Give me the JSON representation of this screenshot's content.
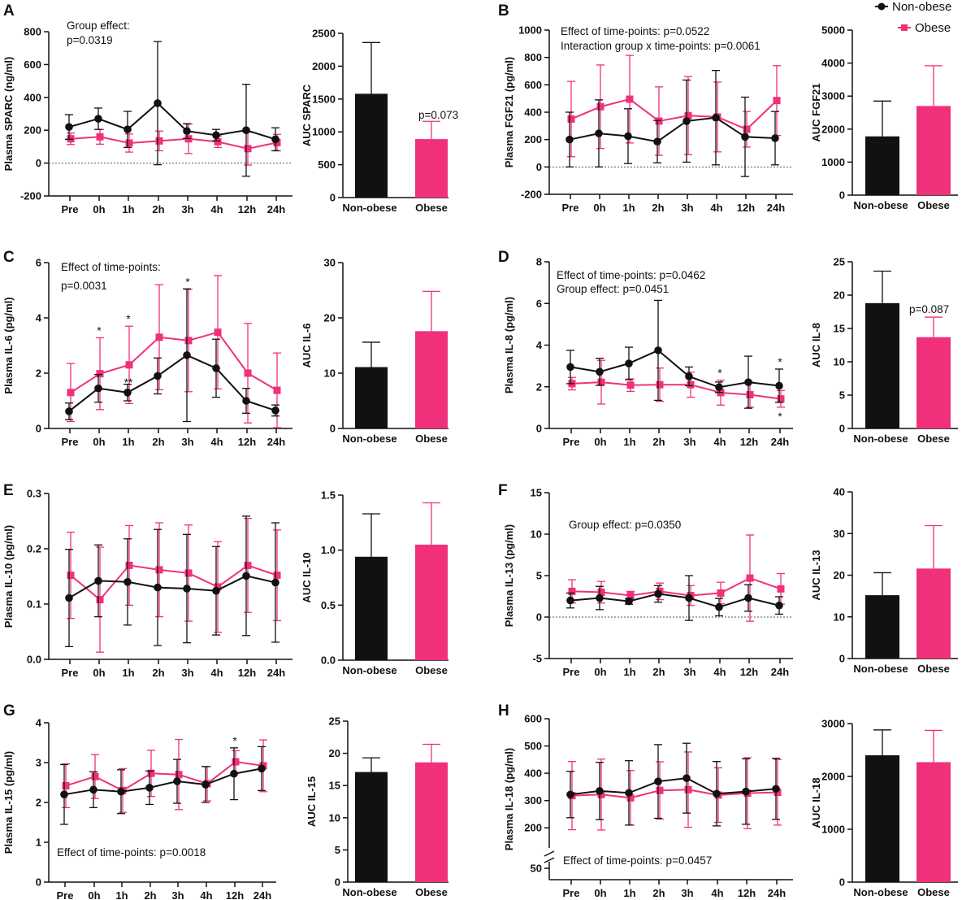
{
  "colors": {
    "non_obese": "#111111",
    "obese": "#f0307a"
  },
  "legend": {
    "non_obese": "Non-obese",
    "obese": "Obese"
  },
  "timepoints": [
    "Pre",
    "0h",
    "1h",
    "2h",
    "3h",
    "4h",
    "12h",
    "24h"
  ],
  "chart_data": [
    {
      "panel": "A",
      "type": "line",
      "title": "",
      "ylabel": "Plasma SPARC (ng/ml)",
      "ylim": [
        -200,
        800
      ],
      "yticks": [
        -200,
        0,
        200,
        400,
        600,
        800
      ],
      "zero_line": true,
      "annotations": [
        "Group effect:",
        "p=0.0319"
      ],
      "series": [
        {
          "name": "Non-obese",
          "values": [
            220,
            270,
            205,
            365,
            195,
            170,
            200,
            145
          ],
          "errors": [
            75,
            65,
            110,
            375,
            45,
            35,
            280,
            70
          ]
        },
        {
          "name": "Obese",
          "values": [
            148,
            160,
            122,
            135,
            148,
            130,
            88,
            125
          ],
          "errors": [
            35,
            45,
            55,
            60,
            90,
            35,
            100,
            50
          ]
        }
      ],
      "bar": {
        "type": "bar",
        "ylabel": "AUC SPARC",
        "ylim": [
          0,
          2500
        ],
        "yticks": [
          0,
          500,
          1000,
          1500,
          2000,
          2500
        ],
        "categories": [
          "Non-obese",
          "Obese"
        ],
        "values": [
          1580,
          890
        ],
        "errors": [
          780,
          270
        ],
        "annotation": "p=0.073"
      }
    },
    {
      "panel": "B",
      "type": "line",
      "ylabel": "Plasma FGF21 (pg/ml)",
      "ylim": [
        -200,
        1000
      ],
      "yticks": [
        -200,
        0,
        200,
        400,
        600,
        800,
        1000
      ],
      "zero_line": true,
      "annotations": [
        "Effect of time-points: p=0.0522",
        "Interaction group x time-points: p=0.0061"
      ],
      "series": [
        {
          "name": "Non-obese",
          "values": [
            200,
            245,
            225,
            185,
            335,
            360,
            220,
            210
          ],
          "errors": [
            200,
            245,
            200,
            155,
            300,
            345,
            290,
            195
          ]
        },
        {
          "name": "Obese",
          "values": [
            350,
            440,
            495,
            335,
            375,
            365,
            275,
            485
          ],
          "errors": [
            275,
            305,
            320,
            250,
            285,
            255,
            130,
            255
          ]
        }
      ],
      "bar": {
        "type": "bar",
        "ylabel": "AUC FGF21",
        "ylim": [
          0,
          5000
        ],
        "yticks": [
          0,
          1000,
          2000,
          3000,
          4000,
          5000
        ],
        "categories": [
          "Non-obese",
          "Obese"
        ],
        "values": [
          1780,
          2700
        ],
        "errors": [
          1070,
          1220
        ],
        "annotation": ""
      }
    },
    {
      "panel": "C",
      "type": "line",
      "ylabel": "Plasma IL-6 (pg/ml)",
      "ylim": [
        0,
        6
      ],
      "yticks": [
        0,
        2,
        4,
        6
      ],
      "zero_line": false,
      "annotations": [
        "Effect of time-points:",
        "p=0.0031"
      ],
      "markers": [
        {
          "index": 1,
          "text": "*"
        },
        {
          "index": 2,
          "text": "*"
        },
        {
          "index": 2,
          "text": "**"
        },
        {
          "index": 4,
          "text": "*"
        }
      ],
      "series": [
        {
          "name": "Non-obese",
          "values": [
            0.62,
            1.45,
            1.3,
            1.9,
            2.65,
            2.18,
            1.0,
            0.65
          ],
          "errors": [
            0.3,
            0.5,
            0.3,
            0.65,
            2.4,
            1.05,
            0.45,
            0.2
          ]
        },
        {
          "name": "Obese",
          "values": [
            1.3,
            1.98,
            2.3,
            3.3,
            3.18,
            3.48,
            2.0,
            1.38
          ],
          "errors": [
            1.05,
            1.3,
            1.4,
            1.9,
            1.85,
            2.05,
            1.8,
            1.35
          ]
        }
      ],
      "bar": {
        "type": "bar",
        "ylabel": "AUC IL-6",
        "ylim": [
          0,
          30
        ],
        "yticks": [
          0,
          10,
          20,
          30
        ],
        "categories": [
          "Non-obese",
          "Obese"
        ],
        "values": [
          11.1,
          17.6
        ],
        "errors": [
          4.5,
          7.2
        ],
        "annotation": ""
      }
    },
    {
      "panel": "D",
      "type": "line",
      "ylabel": "Plasma IL-8 (pg/ml)",
      "ylim": [
        0,
        8
      ],
      "yticks": [
        0,
        2,
        4,
        6,
        8
      ],
      "zero_line": false,
      "annotations": [
        "Effect of time-points: p=0.0462",
        "Group effect: p=0.0451"
      ],
      "markers": [
        {
          "index": 5,
          "text": "*"
        },
        {
          "index": 7,
          "text": "*"
        },
        {
          "index": 7,
          "text": "*",
          "below": true
        }
      ],
      "series": [
        {
          "name": "Non-obese",
          "values": [
            2.95,
            2.72,
            3.12,
            3.75,
            2.5,
            1.98,
            2.22,
            2.05
          ],
          "errors": [
            0.8,
            0.65,
            0.78,
            2.4,
            0.45,
            0.25,
            1.25,
            0.8
          ]
        },
        {
          "name": "Obese",
          "values": [
            2.15,
            2.22,
            2.08,
            2.1,
            2.1,
            1.72,
            1.62,
            1.42
          ],
          "errors": [
            0.3,
            1.05,
            0.3,
            0.8,
            0.6,
            0.6,
            0.6,
            0.4
          ]
        }
      ],
      "bar": {
        "type": "bar",
        "ylabel": "AUC IL-8",
        "ylim": [
          0,
          25
        ],
        "yticks": [
          0,
          5,
          10,
          15,
          20,
          25
        ],
        "categories": [
          "Non-obese",
          "Obese"
        ],
        "values": [
          18.8,
          13.7
        ],
        "errors": [
          4.8,
          3.0
        ],
        "annotation": "p=0.087"
      }
    },
    {
      "panel": "E",
      "type": "line",
      "ylabel": "Plasma IL-10 (pg/ml)",
      "ylim": [
        0,
        0.3
      ],
      "yticks": [
        0.0,
        0.1,
        0.2,
        0.3
      ],
      "ytick_labels": [
        "0.0",
        "0.1",
        "0.2",
        "0.3"
      ],
      "zero_line": false,
      "annotations": [],
      "series": [
        {
          "name": "Non-obese",
          "values": [
            0.111,
            0.142,
            0.14,
            0.13,
            0.128,
            0.124,
            0.151,
            0.139
          ],
          "errors": [
            0.088,
            0.065,
            0.078,
            0.105,
            0.098,
            0.08,
            0.108,
            0.108
          ]
        },
        {
          "name": "Obese",
          "values": [
            0.152,
            0.108,
            0.17,
            0.162,
            0.156,
            0.131,
            0.17,
            0.152
          ],
          "errors": [
            0.078,
            0.095,
            0.072,
            0.085,
            0.087,
            0.082,
            0.085,
            0.082
          ]
        }
      ],
      "bar": {
        "type": "bar",
        "ylabel": "AUC IL-10",
        "ylim": [
          0,
          1.5
        ],
        "yticks": [
          0.0,
          0.5,
          1.0,
          1.5
        ],
        "ytick_labels": [
          "0.0",
          "0.5",
          "1.0",
          "1.5"
        ],
        "categories": [
          "Non-obese",
          "Obese"
        ],
        "values": [
          0.94,
          1.05
        ],
        "errors": [
          0.39,
          0.38
        ],
        "annotation": ""
      }
    },
    {
      "panel": "F",
      "type": "line",
      "ylabel": "Plasma IL-13 (pg/ml)",
      "ylim": [
        -5,
        15
      ],
      "yticks": [
        -5,
        0,
        5,
        10,
        15
      ],
      "zero_line": true,
      "annotations": [
        "Group effect: p=0.0350"
      ],
      "series": [
        {
          "name": "Non-obese",
          "values": [
            2.0,
            2.3,
            1.9,
            2.8,
            2.3,
            1.2,
            2.3,
            1.4
          ],
          "errors": [
            0.9,
            1.4,
            0.35,
            1.0,
            2.7,
            1.05,
            1.6,
            1.05
          ]
        },
        {
          "name": "Obese",
          "values": [
            3.1,
            3.0,
            2.6,
            3.1,
            2.6,
            2.9,
            4.7,
            3.4
          ],
          "errors": [
            1.4,
            1.3,
            0.5,
            1.0,
            1.2,
            1.3,
            5.2,
            1.85
          ]
        }
      ],
      "bar": {
        "type": "bar",
        "ylabel": "AUC IL-13",
        "ylim": [
          0,
          40
        ],
        "yticks": [
          0,
          10,
          20,
          30,
          40
        ],
        "categories": [
          "Non-obese",
          "Obese"
        ],
        "values": [
          15.2,
          21.6
        ],
        "errors": [
          5.4,
          10.3
        ],
        "annotation": ""
      }
    },
    {
      "panel": "G",
      "type": "line",
      "ylabel": "Plasma IL-15 (pg/ml)",
      "ylim": [
        0,
        4
      ],
      "yticks": [
        0,
        1,
        2,
        3,
        4
      ],
      "zero_line": false,
      "annotations": [
        "Effect of time-points: p=0.0018"
      ],
      "markers": [
        {
          "index": 6,
          "text": "*"
        }
      ],
      "series": [
        {
          "name": "Non-obese",
          "values": [
            2.2,
            2.32,
            2.27,
            2.37,
            2.53,
            2.45,
            2.72,
            2.85
          ],
          "errors": [
            0.75,
            0.45,
            0.55,
            0.42,
            0.55,
            0.45,
            0.65,
            0.55
          ]
        },
        {
          "name": "Obese",
          "values": [
            2.42,
            2.65,
            2.3,
            2.73,
            2.7,
            2.47,
            3.02,
            2.92
          ],
          "errors": [
            0.55,
            0.55,
            0.55,
            0.58,
            0.88,
            0.43,
            0.28,
            0.65
          ]
        }
      ],
      "bar": {
        "type": "bar",
        "ylabel": "AUC IL-15",
        "ylim": [
          0,
          25
        ],
        "yticks": [
          0,
          5,
          10,
          15,
          20,
          25
        ],
        "categories": [
          "Non-obese",
          "Obese"
        ],
        "values": [
          17.1,
          18.6
        ],
        "errors": [
          2.2,
          2.8
        ],
        "annotation": ""
      }
    },
    {
      "panel": "H",
      "type": "line",
      "ylabel": "Plasma IL-18 (pg/ml)",
      "ylim": [
        150,
        600
      ],
      "yticks": [
        200,
        300,
        400,
        500,
        600
      ],
      "axis_break": true,
      "break_tick": 50,
      "zero_line": false,
      "annotations": [
        "Effect of time-points: p=0.0457"
      ],
      "series": [
        {
          "name": "Non-obese",
          "values": [
            322,
            335,
            328,
            370,
            382,
            325,
            333,
            343
          ],
          "errors": [
            85,
            105,
            118,
            135,
            128,
            118,
            120,
            112
          ]
        },
        {
          "name": "Obese",
          "values": [
            318,
            322,
            310,
            337,
            340,
            320,
            327,
            330
          ],
          "errors": [
            125,
            130,
            100,
            105,
            138,
            100,
            130,
            120
          ]
        }
      ],
      "bar": {
        "type": "bar",
        "ylabel": "AUC IL-18",
        "ylim": [
          0,
          3000
        ],
        "yticks": [
          0,
          1000,
          2000,
          3000
        ],
        "categories": [
          "Non-obese",
          "Obese"
        ],
        "values": [
          2400,
          2270
        ],
        "errors": [
          480,
          600
        ],
        "annotation": ""
      }
    }
  ]
}
